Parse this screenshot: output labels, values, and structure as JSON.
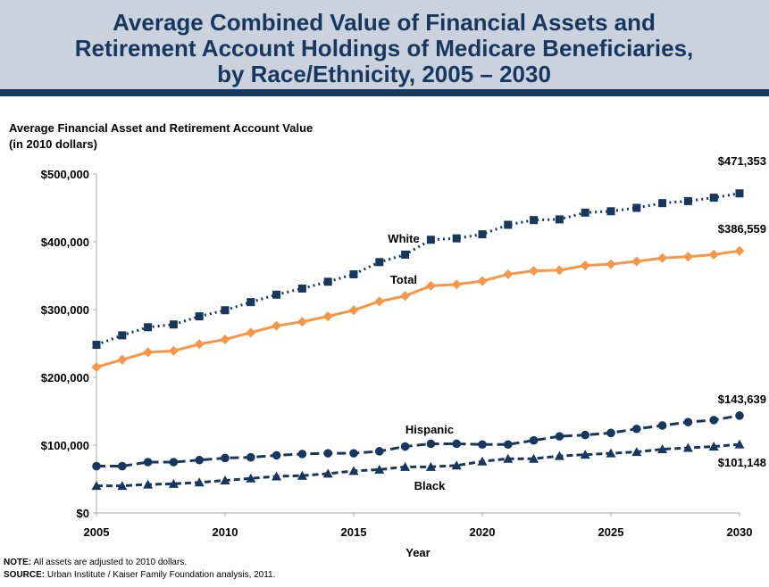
{
  "chart_data": {
    "type": "line",
    "title": [
      "Average Combined Value of Financial Assets and",
      "Retirement Account Holdings of Medicare Beneficiaries,",
      "by Race/Ethnicity, 2005 – 2030"
    ],
    "y_label": [
      "Average Financial Asset and Retirement Account Value",
      "(in 2010 dollars)"
    ],
    "x_label": "Year",
    "x": [
      2005,
      2006,
      2007,
      2008,
      2009,
      2010,
      2011,
      2012,
      2013,
      2014,
      2015,
      2016,
      2017,
      2018,
      2019,
      2020,
      2021,
      2022,
      2023,
      2024,
      2025,
      2026,
      2027,
      2028,
      2029,
      2030
    ],
    "xlim": [
      2005,
      2030
    ],
    "xticks": [
      2005,
      2010,
      2015,
      2020,
      2025,
      2030
    ],
    "ylim": [
      0,
      500000
    ],
    "yticks": [
      {
        "value": 0,
        "label": "$0"
      },
      {
        "value": 100000,
        "label": "$100,000"
      },
      {
        "value": 200000,
        "label": "$200,000"
      },
      {
        "value": 300000,
        "label": "$300,000"
      },
      {
        "value": 400000,
        "label": "$400,000"
      },
      {
        "value": 500000,
        "label": "$500,000"
      }
    ],
    "grid": false,
    "series": [
      {
        "name": "White",
        "color": "#17375e",
        "marker": "square",
        "dash": "dotted",
        "values": [
          248000,
          262000,
          274000,
          278000,
          290000,
          299000,
          311000,
          322000,
          331000,
          341000,
          352000,
          370000,
          381000,
          403000,
          405000,
          411000,
          425000,
          432000,
          433000,
          443000,
          445000,
          450000,
          457000,
          460000,
          465000,
          471353
        ],
        "value_labels": [
          null,
          null,
          null,
          null,
          null,
          null,
          null,
          null,
          null,
          null,
          null,
          null,
          null,
          null,
          null,
          null,
          null,
          null,
          null,
          null,
          null,
          null,
          null,
          null,
          null,
          "$471,353"
        ]
      },
      {
        "name": "Total",
        "color": "#f79646",
        "marker": "diamond",
        "dash": "solid",
        "values": [
          215000,
          226000,
          237000,
          239000,
          249000,
          256000,
          266000,
          276000,
          282000,
          290000,
          299000,
          312000,
          320000,
          335000,
          337000,
          342000,
          352000,
          357000,
          358000,
          365000,
          367000,
          371000,
          376000,
          378000,
          381000,
          386559
        ],
        "value_labels": [
          null,
          null,
          null,
          null,
          null,
          null,
          null,
          null,
          null,
          null,
          null,
          null,
          null,
          null,
          null,
          null,
          null,
          null,
          null,
          null,
          null,
          null,
          null,
          null,
          null,
          "$386,559"
        ]
      },
      {
        "name": "Hispanic",
        "color": "#17375e",
        "marker": "circle",
        "dash": "longdash",
        "values": [
          69000,
          69000,
          75000,
          75000,
          78000,
          81000,
          82000,
          85000,
          87000,
          88000,
          88000,
          91000,
          98000,
          102000,
          102000,
          101000,
          101000,
          107000,
          113000,
          115000,
          118000,
          124000,
          129000,
          134000,
          137000,
          143639
        ],
        "value_labels": [
          null,
          null,
          null,
          null,
          null,
          null,
          null,
          null,
          null,
          null,
          null,
          null,
          null,
          null,
          null,
          null,
          null,
          null,
          null,
          null,
          null,
          null,
          null,
          null,
          null,
          "$143,639"
        ]
      },
      {
        "name": "Black",
        "color": "#17375e",
        "marker": "triangle",
        "dash": "dashed",
        "values": [
          40000,
          40000,
          42000,
          43000,
          45000,
          48000,
          51000,
          54000,
          55000,
          58000,
          62000,
          64000,
          68000,
          68000,
          70000,
          76000,
          80000,
          80000,
          84000,
          86000,
          88000,
          90000,
          94000,
          96000,
          98000,
          101148
        ],
        "value_labels": [
          null,
          null,
          null,
          null,
          null,
          null,
          null,
          null,
          null,
          null,
          null,
          null,
          null,
          null,
          null,
          null,
          null,
          null,
          null,
          null,
          null,
          null,
          null,
          null,
          null,
          "$101,148"
        ]
      }
    ],
    "note": {
      "label": "NOTE:",
      "text": " All assets are adjusted to 2010 dollars."
    },
    "source": {
      "label": "SOURCE:",
      "text": " Urban Institute / Kaiser Family Foundation analysis, 2011."
    }
  }
}
